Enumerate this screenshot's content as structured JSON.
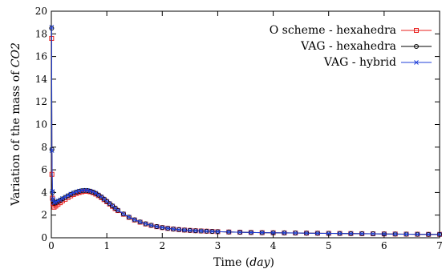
{
  "chart_data": {
    "type": "line",
    "xlabel": {
      "prefix": "Time (",
      "var": "day",
      "suffix": ")"
    },
    "ylabel": {
      "prefix": "Variation of the mass of ",
      "var": "CO2"
    },
    "xlim": [
      0,
      7
    ],
    "ylim": [
      0,
      20
    ],
    "xticks": [
      "0",
      "1",
      "2",
      "3",
      "4",
      "5",
      "6",
      "7"
    ],
    "yticks": [
      "0",
      "2",
      "4",
      "6",
      "8",
      "10",
      "12",
      "14",
      "16",
      "18",
      "20"
    ],
    "grid": false,
    "legend_position": "top-right",
    "series": [
      {
        "name": "O scheme - hexahedra",
        "color": "#e8201e",
        "marker": "square",
        "x": [
          0.005,
          0.01,
          0.02,
          0.03,
          0.05,
          0.08,
          0.12,
          0.16,
          0.2,
          0.25,
          0.3,
          0.35,
          0.4,
          0.45,
          0.5,
          0.55,
          0.6,
          0.65,
          0.7,
          0.75,
          0.8,
          0.85,
          0.9,
          0.95,
          1.0,
          1.05,
          1.1,
          1.15,
          1.2,
          1.3,
          1.4,
          1.5,
          1.6,
          1.7,
          1.8,
          1.9,
          2.0,
          2.1,
          2.2,
          2.3,
          2.4,
          2.5,
          2.6,
          2.7,
          2.8,
          2.9,
          3.0,
          3.2,
          3.4,
          3.6,
          3.8,
          4.0,
          4.2,
          4.4,
          4.6,
          4.8,
          5.0,
          5.2,
          5.4,
          5.6,
          5.8,
          6.0,
          6.2,
          6.4,
          6.6,
          6.8,
          7.0
        ],
        "y": [
          17.6,
          5.6,
          3.5,
          3.0,
          2.7,
          2.8,
          2.95,
          3.1,
          3.25,
          3.4,
          3.55,
          3.7,
          3.82,
          3.92,
          4.0,
          4.06,
          4.1,
          4.1,
          4.06,
          3.98,
          3.86,
          3.72,
          3.55,
          3.37,
          3.18,
          2.98,
          2.78,
          2.58,
          2.4,
          2.08,
          1.8,
          1.57,
          1.38,
          1.22,
          1.09,
          0.98,
          0.9,
          0.83,
          0.77,
          0.72,
          0.68,
          0.65,
          0.62,
          0.6,
          0.58,
          0.56,
          0.54,
          0.51,
          0.49,
          0.47,
          0.45,
          0.44,
          0.43,
          0.42,
          0.41,
          0.4,
          0.39,
          0.38,
          0.37,
          0.36,
          0.35,
          0.34,
          0.33,
          0.32,
          0.31,
          0.3,
          0.3
        ]
      },
      {
        "name": "VAG - hexahedra",
        "color": "#000000",
        "marker": "circle",
        "x": [
          0.005,
          0.01,
          0.02,
          0.03,
          0.05,
          0.08,
          0.12,
          0.16,
          0.2,
          0.25,
          0.3,
          0.35,
          0.4,
          0.45,
          0.5,
          0.55,
          0.6,
          0.65,
          0.7,
          0.75,
          0.8,
          0.85,
          0.9,
          0.95,
          1.0,
          1.05,
          1.1,
          1.15,
          1.2,
          1.3,
          1.4,
          1.5,
          1.6,
          1.7,
          1.8,
          1.9,
          2.0,
          2.1,
          2.2,
          2.3,
          2.4,
          2.5,
          2.6,
          2.7,
          2.8,
          2.9,
          3.0,
          3.2,
          3.4,
          3.6,
          3.8,
          4.0,
          4.2,
          4.4,
          4.6,
          4.8,
          5.0,
          5.2,
          5.4,
          5.6,
          5.8,
          6.0,
          6.2,
          6.4,
          6.6,
          6.8,
          7.0
        ],
        "y": [
          18.5,
          7.8,
          4.0,
          3.3,
          3.05,
          3.1,
          3.2,
          3.3,
          3.43,
          3.57,
          3.7,
          3.83,
          3.94,
          4.03,
          4.1,
          4.15,
          4.18,
          4.17,
          4.12,
          4.04,
          3.92,
          3.77,
          3.6,
          3.42,
          3.22,
          3.02,
          2.82,
          2.62,
          2.43,
          2.1,
          1.82,
          1.59,
          1.4,
          1.24,
          1.1,
          0.99,
          0.9,
          0.83,
          0.77,
          0.72,
          0.68,
          0.65,
          0.62,
          0.6,
          0.58,
          0.56,
          0.54,
          0.51,
          0.49,
          0.47,
          0.45,
          0.44,
          0.43,
          0.42,
          0.41,
          0.4,
          0.39,
          0.38,
          0.37,
          0.36,
          0.35,
          0.34,
          0.33,
          0.32,
          0.31,
          0.3,
          0.3
        ]
      },
      {
        "name": "VAG - hybrid",
        "color": "#1f3fd8",
        "marker": "cross",
        "x": [
          0.005,
          0.01,
          0.02,
          0.03,
          0.05,
          0.08,
          0.12,
          0.16,
          0.2,
          0.25,
          0.3,
          0.35,
          0.4,
          0.45,
          0.5,
          0.55,
          0.6,
          0.65,
          0.7,
          0.75,
          0.8,
          0.85,
          0.9,
          0.95,
          1.0,
          1.05,
          1.1,
          1.15,
          1.2,
          1.3,
          1.4,
          1.5,
          1.6,
          1.7,
          1.8,
          1.9,
          2.0,
          2.1,
          2.2,
          2.3,
          2.4,
          2.5,
          2.6,
          2.7,
          2.8,
          2.9,
          3.0,
          3.2,
          3.4,
          3.6,
          3.8,
          4.0,
          4.2,
          4.4,
          4.6,
          4.8,
          5.0,
          5.2,
          5.4,
          5.6,
          5.8,
          6.0,
          6.2,
          6.4,
          6.6,
          6.8,
          7.0
        ],
        "y": [
          18.6,
          7.7,
          4.1,
          3.4,
          3.1,
          3.15,
          3.25,
          3.35,
          3.47,
          3.6,
          3.73,
          3.86,
          3.97,
          4.06,
          4.13,
          4.18,
          4.2,
          4.19,
          4.14,
          4.06,
          3.94,
          3.79,
          3.62,
          3.43,
          3.23,
          3.03,
          2.83,
          2.63,
          2.44,
          2.11,
          1.83,
          1.6,
          1.4,
          1.24,
          1.1,
          0.99,
          0.9,
          0.83,
          0.77,
          0.72,
          0.68,
          0.65,
          0.62,
          0.6,
          0.58,
          0.56,
          0.54,
          0.51,
          0.49,
          0.47,
          0.45,
          0.44,
          0.43,
          0.42,
          0.41,
          0.4,
          0.39,
          0.38,
          0.37,
          0.36,
          0.35,
          0.34,
          0.33,
          0.32,
          0.31,
          0.3,
          0.3
        ]
      }
    ]
  }
}
